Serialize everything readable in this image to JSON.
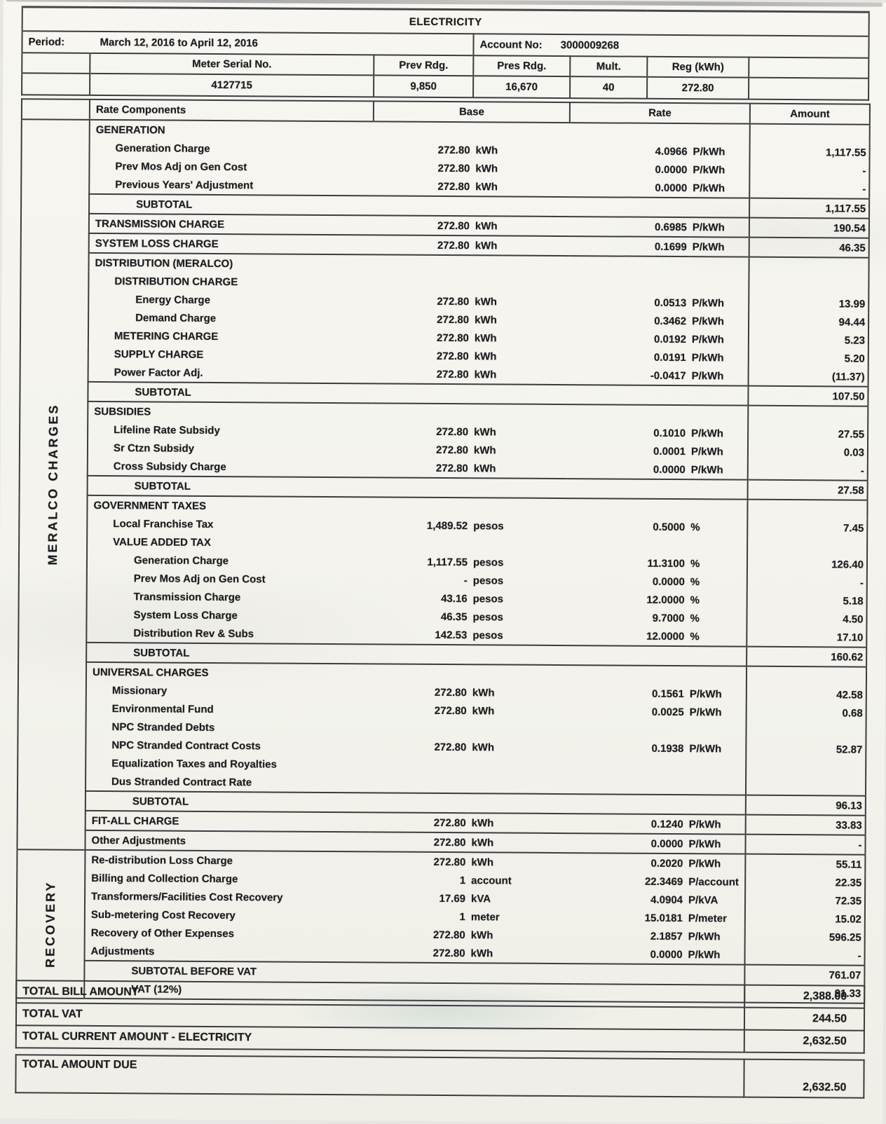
{
  "page": {
    "title": "ELECTRICITY",
    "period": {
      "label": "Period:",
      "value": "March 12, 2016 to April 12, 2016"
    },
    "account": {
      "label": "Account No:",
      "value": "3000009268"
    },
    "meter_table": {
      "headers": [
        "Meter Serial No.",
        "Prev Rdg.",
        "Pres Rdg.",
        "Mult.",
        "Reg (kWh)"
      ],
      "values": [
        "4127715",
        "9,850",
        "16,670",
        "40",
        "272.80"
      ]
    }
  },
  "charges": {
    "headers": {
      "components": "Rate Components",
      "base": "Base",
      "rate": "Rate",
      "amount": "Amount"
    },
    "groups": [
      {
        "label": "MERALCO CHARGES",
        "rows": [
          {
            "label": "GENERATION",
            "style": "hdr",
            "indent": 0,
            "top": true
          },
          {
            "label": "Generation Charge",
            "style": "item",
            "indent": 1,
            "base": "272.80",
            "bunit": "kWh",
            "rate": "4.0966",
            "runit": "P/kWh",
            "amount": "1,117.55"
          },
          {
            "label": "Prev Mos Adj on Gen Cost",
            "style": "item",
            "indent": 1,
            "base": "272.80",
            "bunit": "kWh",
            "rate": "0.0000",
            "runit": "P/kWh",
            "amount": "-"
          },
          {
            "label": "Previous Years' Adjustment",
            "style": "item",
            "indent": 1,
            "base": "272.80",
            "bunit": "kWh",
            "rate": "0.0000",
            "runit": "P/kWh",
            "amount": "-"
          },
          {
            "label": "SUBTOTAL",
            "style": "sub",
            "indent": 2,
            "amount": "1,117.55",
            "top": true
          },
          {
            "label": "TRANSMISSION CHARGE",
            "style": "hdr",
            "indent": 0,
            "base": "272.80",
            "bunit": "kWh",
            "rate": "0.6985",
            "runit": "P/kWh",
            "amount": "190.54",
            "top": true
          },
          {
            "label": "SYSTEM LOSS CHARGE",
            "style": "hdr",
            "indent": 0,
            "base": "272.80",
            "bunit": "kWh",
            "rate": "0.1699",
            "runit": "P/kWh",
            "amount": "46.35",
            "top": true
          },
          {
            "label": "DISTRIBUTION (MERALCO)",
            "style": "hdr",
            "indent": 0,
            "top": true
          },
          {
            "label": "DISTRIBUTION CHARGE",
            "style": "hdr",
            "indent": 1
          },
          {
            "label": "Energy Charge",
            "style": "item",
            "indent": 2,
            "base": "272.80",
            "bunit": "kWh",
            "rate": "0.0513",
            "runit": "P/kWh",
            "amount": "13.99"
          },
          {
            "label": "Demand Charge",
            "style": "item",
            "indent": 2,
            "base": "272.80",
            "bunit": "kWh",
            "rate": "0.3462",
            "runit": "P/kWh",
            "amount": "94.44"
          },
          {
            "label": "METERING CHARGE",
            "style": "hdr",
            "indent": 1,
            "base": "272.80",
            "bunit": "kWh",
            "rate": "0.0192",
            "runit": "P/kWh",
            "amount": "5.23"
          },
          {
            "label": "SUPPLY CHARGE",
            "style": "hdr",
            "indent": 1,
            "base": "272.80",
            "bunit": "kWh",
            "rate": "0.0191",
            "runit": "P/kWh",
            "amount": "5.20"
          },
          {
            "label": "Power Factor Adj.",
            "style": "item",
            "indent": 1,
            "base": "272.80",
            "bunit": "kWh",
            "rate": "-0.0417",
            "runit": "P/kWh",
            "amount": "(11.37)"
          },
          {
            "label": "SUBTOTAL",
            "style": "sub",
            "indent": 2,
            "amount": "107.50",
            "top": true
          },
          {
            "label": "SUBSIDIES",
            "style": "hdr",
            "indent": 0,
            "top": true
          },
          {
            "label": "Lifeline Rate Subsidy",
            "style": "item",
            "indent": 1,
            "base": "272.80",
            "bunit": "kWh",
            "rate": "0.1010",
            "runit": "P/kWh",
            "amount": "27.55"
          },
          {
            "label": "Sr Ctzn Subsidy",
            "style": "item",
            "indent": 1,
            "base": "272.80",
            "bunit": "kWh",
            "rate": "0.0001",
            "runit": "P/kWh",
            "amount": "0.03"
          },
          {
            "label": "Cross Subsidy Charge",
            "style": "item",
            "indent": 1,
            "base": "272.80",
            "bunit": "kWh",
            "rate": "0.0000",
            "runit": "P/kWh",
            "amount": "-"
          },
          {
            "label": "SUBTOTAL",
            "style": "sub",
            "indent": 2,
            "amount": "27.58",
            "top": true
          },
          {
            "label": "GOVERNMENT TAXES",
            "style": "hdr",
            "indent": 0,
            "top": true
          },
          {
            "label": "Local Franchise Tax",
            "style": "item",
            "indent": 1,
            "base": "1,489.52",
            "bunit": "pesos",
            "rate": "0.5000",
            "runit": "%",
            "amount": "7.45"
          },
          {
            "label": "VALUE ADDED TAX",
            "style": "hdr",
            "indent": 1
          },
          {
            "label": "Generation Charge",
            "style": "item",
            "indent": 2,
            "base": "1,117.55",
            "bunit": "pesos",
            "rate": "11.3100",
            "runit": "%",
            "amount": "126.40"
          },
          {
            "label": "Prev Mos Adj on Gen Cost",
            "style": "item",
            "indent": 2,
            "base": "-",
            "bunit": "pesos",
            "rate": "0.0000",
            "runit": "%",
            "amount": "-"
          },
          {
            "label": "Transmission Charge",
            "style": "item",
            "indent": 2,
            "base": "43.16",
            "bunit": "pesos",
            "rate": "12.0000",
            "runit": "%",
            "amount": "5.18"
          },
          {
            "label": "System Loss Charge",
            "style": "item",
            "indent": 2,
            "base": "46.35",
            "bunit": "pesos",
            "rate": "9.7000",
            "runit": "%",
            "amount": "4.50"
          },
          {
            "label": "Distribution Rev & Subs",
            "style": "item",
            "indent": 2,
            "base": "142.53",
            "bunit": "pesos",
            "rate": "12.0000",
            "runit": "%",
            "amount": "17.10"
          },
          {
            "label": "SUBTOTAL",
            "style": "sub",
            "indent": 2,
            "amount": "160.62",
            "top": true
          },
          {
            "label": "UNIVERSAL CHARGES",
            "style": "hdr",
            "indent": 0,
            "top": true
          },
          {
            "label": "Missionary",
            "style": "item",
            "indent": 1,
            "base": "272.80",
            "bunit": "kWh",
            "rate": "0.1561",
            "runit": "P/kWh",
            "amount": "42.58"
          },
          {
            "label": "Environmental Fund",
            "style": "item",
            "indent": 1,
            "base": "272.80",
            "bunit": "kWh",
            "rate": "0.0025",
            "runit": "P/kWh",
            "amount": "0.68"
          },
          {
            "label": "NPC Stranded Debts",
            "style": "item",
            "indent": 1
          },
          {
            "label": "NPC Stranded Contract Costs",
            "style": "item",
            "indent": 1,
            "base": "272.80",
            "bunit": "kWh",
            "rate": "0.1938",
            "runit": "P/kWh",
            "amount": "52.87"
          },
          {
            "label": "Equalization Taxes and Royalties",
            "style": "item",
            "indent": 1
          },
          {
            "label": "Dus Stranded Contract Rate",
            "style": "item",
            "indent": 1
          },
          {
            "label": "SUBTOTAL",
            "style": "sub",
            "indent": 2,
            "amount": "96.13",
            "top": true
          },
          {
            "label": "FIT-ALL CHARGE",
            "style": "hdr",
            "indent": 0,
            "base": "272.80",
            "bunit": "kWh",
            "rate": "0.1240",
            "runit": "P/kWh",
            "amount": "33.83",
            "top": true
          },
          {
            "label": "Other Adjustments",
            "style": "item",
            "indent": 0,
            "base": "272.80",
            "bunit": "kWh",
            "rate": "0.0000",
            "runit": "P/kWh",
            "amount": "-",
            "top": true
          }
        ]
      },
      {
        "label": "RECOVERY",
        "rows": [
          {
            "label": "Re-distribution Loss Charge",
            "style": "item",
            "indent": 0,
            "base": "272.80",
            "bunit": "kWh",
            "rate": "0.2020",
            "runit": "P/kWh",
            "amount": "55.11",
            "top": true
          },
          {
            "label": "Billing and Collection Charge",
            "style": "item",
            "indent": 0,
            "base": "1",
            "bunit": "account",
            "rate": "22.3469",
            "runit": "P/account",
            "amount": "22.35"
          },
          {
            "label": "Transformers/Facilities Cost Recovery",
            "style": "item",
            "indent": 0,
            "base": "17.69",
            "bunit": "kVA",
            "rate": "4.0904",
            "runit": "P/kVA",
            "amount": "72.35"
          },
          {
            "label": "Sub-metering Cost Recovery",
            "style": "item",
            "indent": 0,
            "base": "1",
            "bunit": "meter",
            "rate": "15.0181",
            "runit": "P/meter",
            "amount": "15.02"
          },
          {
            "label": "Recovery of Other Expenses",
            "style": "item",
            "indent": 0,
            "base": "272.80",
            "bunit": "kWh",
            "rate": "2.1857",
            "runit": "P/kWh",
            "amount": "596.25"
          },
          {
            "label": "Adjustments",
            "style": "item",
            "indent": 0,
            "base": "272.80",
            "bunit": "kWh",
            "rate": "0.0000",
            "runit": "P/kWh",
            "amount": "-"
          },
          {
            "label": "SUBTOTAL BEFORE VAT",
            "style": "sub",
            "indent": 2,
            "amount": "761.07",
            "top": true
          },
          {
            "label": "VAT (12%)",
            "style": "sub",
            "indent": 2,
            "amount": "91.33"
          }
        ]
      }
    ]
  },
  "totals": {
    "rows": [
      {
        "label": "TOTAL BILL AMOUNT",
        "amount": "2,388.00"
      },
      {
        "label": "TOTAL VAT",
        "amount": "244.50"
      },
      {
        "label": "TOTAL CURRENT AMOUNT - ELECTRICITY",
        "amount": "2,632.50"
      }
    ],
    "due": {
      "label": "TOTAL AMOUNT DUE",
      "amount": "2,632.50"
    }
  }
}
